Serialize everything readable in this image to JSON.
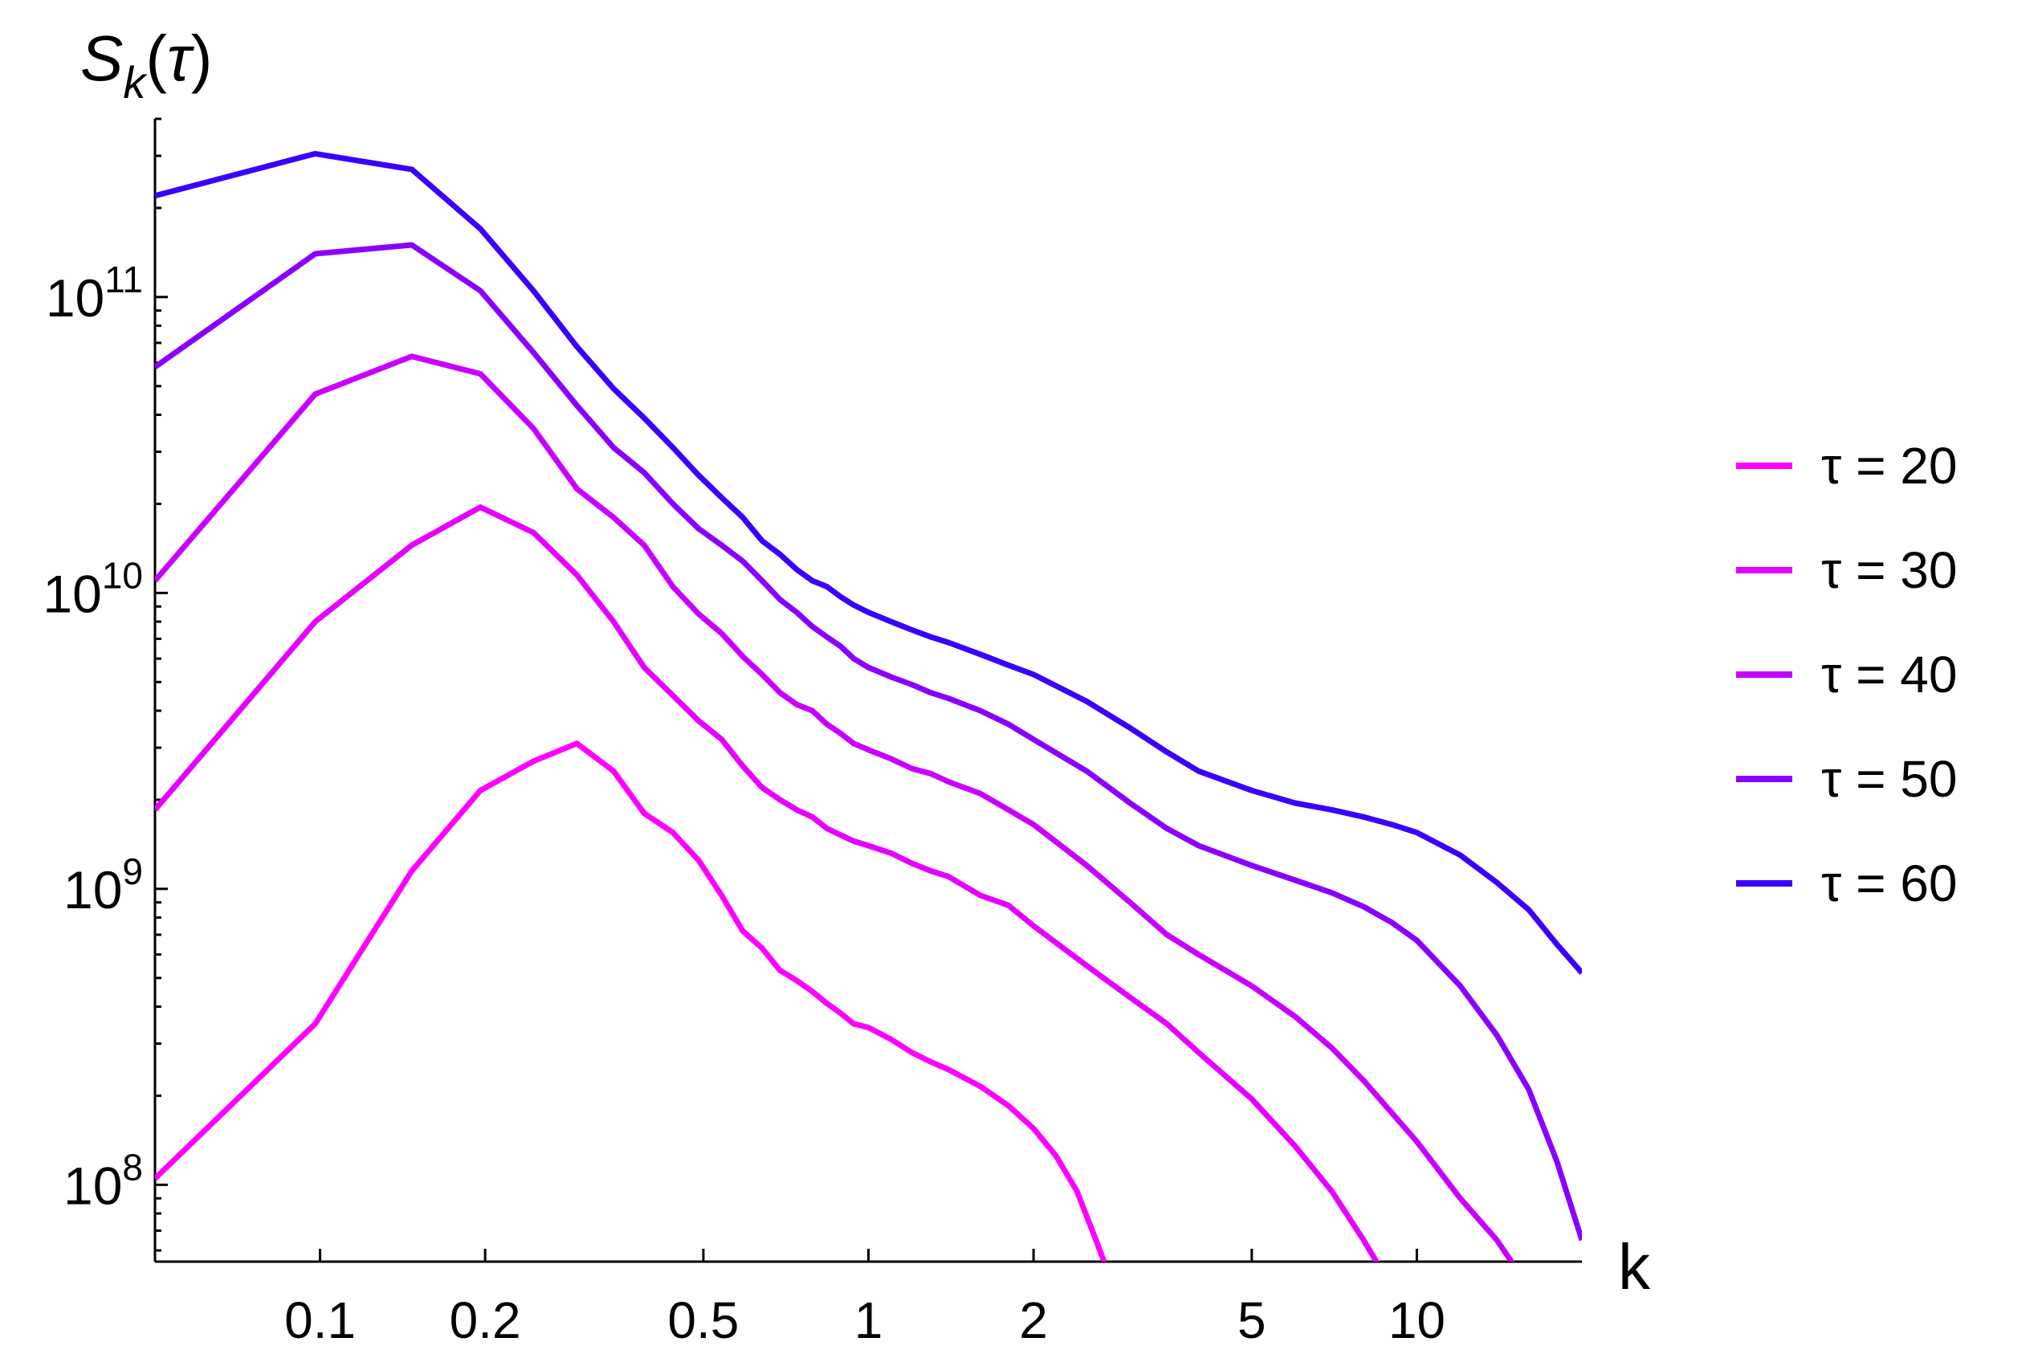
{
  "chart_data": {
    "type": "line",
    "title": "",
    "xlabel": "k",
    "ylabel": "S_k(τ)",
    "xscale": "log",
    "yscale": "log",
    "xlim": [
      0.05,
      20
    ],
    "ylim": [
      55000000,
      400000000000.0
    ],
    "x_ticks": [
      {
        "value": 0.1,
        "label": "0.1"
      },
      {
        "value": 0.2,
        "label": "0.2"
      },
      {
        "value": 0.5,
        "label": "0.5"
      },
      {
        "value": 1,
        "label": "1"
      },
      {
        "value": 2,
        "label": "2"
      },
      {
        "value": 5,
        "label": "5"
      },
      {
        "value": 10,
        "label": "10"
      }
    ],
    "y_ticks": [
      {
        "value": 100000000,
        "mantissa": "10",
        "exponent": "8"
      },
      {
        "value": 1000000000,
        "mantissa": "10",
        "exponent": "9"
      },
      {
        "value": 10000000000,
        "mantissa": "10",
        "exponent": "10"
      },
      {
        "value": 100000000000,
        "mantissa": "10",
        "exponent": "11"
      }
    ],
    "legend_position": "right",
    "series": [
      {
        "name": "τ = 20",
        "color": "#ff00ff",
        "points": [
          [
            0.05,
            105000000.0
          ],
          [
            0.098,
            350000000.0
          ],
          [
            0.147,
            1150000000.0
          ],
          [
            0.196,
            2150000000.0
          ],
          [
            0.245,
            2700000000.0
          ],
          [
            0.294,
            3100000000.0
          ],
          [
            0.343,
            2500000000.0
          ],
          [
            0.39,
            1800000000.0
          ],
          [
            0.44,
            1550000000.0
          ],
          [
            0.49,
            1250000000.0
          ],
          [
            0.54,
            950000000.0
          ],
          [
            0.59,
            720000000.0
          ],
          [
            0.64,
            630000000.0
          ],
          [
            0.69,
            530000000.0
          ],
          [
            0.74,
            490000000.0
          ],
          [
            0.79,
            450000000.0
          ],
          [
            0.84,
            410000000.0
          ],
          [
            0.89,
            380000000.0
          ],
          [
            0.94,
            350000000.0
          ],
          [
            1.0,
            340000000.0
          ],
          [
            1.1,
            310000000.0
          ],
          [
            1.2,
            280000000.0
          ],
          [
            1.3,
            260000000.0
          ],
          [
            1.4,
            245000000.0
          ],
          [
            1.6,
            215000000.0
          ],
          [
            1.8,
            185000000.0
          ],
          [
            2.0,
            155000000.0
          ],
          [
            2.2,
            125000000.0
          ],
          [
            2.4,
            95000000.0
          ],
          [
            2.6,
            65000000.0
          ],
          [
            2.8,
            45000000.0
          ]
        ]
      },
      {
        "name": "τ = 30",
        "color": "#e600ff",
        "points": [
          [
            0.05,
            1850000000.0
          ],
          [
            0.098,
            8000000000.0
          ],
          [
            0.147,
            14500000000.0
          ],
          [
            0.196,
            19500000000.0
          ],
          [
            0.245,
            16000000000.0
          ],
          [
            0.294,
            11500000000.0
          ],
          [
            0.343,
            8000000000.0
          ],
          [
            0.39,
            5600000000.0
          ],
          [
            0.44,
            4500000000.0
          ],
          [
            0.49,
            3700000000.0
          ],
          [
            0.54,
            3200000000.0
          ],
          [
            0.59,
            2600000000.0
          ],
          [
            0.64,
            2200000000.0
          ],
          [
            0.69,
            2000000000.0
          ],
          [
            0.74,
            1850000000.0
          ],
          [
            0.79,
            1750000000.0
          ],
          [
            0.84,
            1600000000.0
          ],
          [
            0.89,
            1520000000.0
          ],
          [
            0.94,
            1450000000.0
          ],
          [
            1.0,
            1400000000.0
          ],
          [
            1.1,
            1320000000.0
          ],
          [
            1.2,
            1220000000.0
          ],
          [
            1.3,
            1150000000.0
          ],
          [
            1.4,
            1100000000.0
          ],
          [
            1.6,
            950000000.0
          ],
          [
            1.8,
            880000000.0
          ],
          [
            2.0,
            750000000.0
          ],
          [
            2.5,
            550000000.0
          ],
          [
            3.0,
            430000000.0
          ],
          [
            3.5,
            350000000.0
          ],
          [
            4.0,
            280000000.0
          ],
          [
            5.0,
            195000000.0
          ],
          [
            6.0,
            135000000.0
          ],
          [
            7.0,
            95000000.0
          ],
          [
            8.0,
            65000000.0
          ],
          [
            9.0,
            45000000.0
          ]
        ]
      },
      {
        "name": "τ = 40",
        "color": "#c800ff",
        "points": [
          [
            0.05,
            11000000000.0
          ],
          [
            0.098,
            47000000000.0
          ],
          [
            0.147,
            63000000000.0
          ],
          [
            0.196,
            55000000000.0
          ],
          [
            0.245,
            36000000000.0
          ],
          [
            0.294,
            22500000000.0
          ],
          [
            0.343,
            18000000000.0
          ],
          [
            0.39,
            14500000000.0
          ],
          [
            0.44,
            10500000000.0
          ],
          [
            0.49,
            8500000000.0
          ],
          [
            0.54,
            7300000000.0
          ],
          [
            0.59,
            6100000000.0
          ],
          [
            0.64,
            5300000000.0
          ],
          [
            0.69,
            4600000000.0
          ],
          [
            0.74,
            4200000000.0
          ],
          [
            0.79,
            4000000000.0
          ],
          [
            0.84,
            3600000000.0
          ],
          [
            0.89,
            3350000000.0
          ],
          [
            0.94,
            3100000000.0
          ],
          [
            1.0,
            2950000000.0
          ],
          [
            1.1,
            2750000000.0
          ],
          [
            1.2,
            2550000000.0
          ],
          [
            1.3,
            2450000000.0
          ],
          [
            1.4,
            2300000000.0
          ],
          [
            1.6,
            2100000000.0
          ],
          [
            1.8,
            1850000000.0
          ],
          [
            2.0,
            1650000000.0
          ],
          [
            2.5,
            1200000000.0
          ],
          [
            3.0,
            900000000.0
          ],
          [
            3.5,
            700000000.0
          ],
          [
            4.0,
            600000000.0
          ],
          [
            5.0,
            470000000.0
          ],
          [
            6.0,
            370000000.0
          ],
          [
            7.0,
            290000000.0
          ],
          [
            8.0,
            225000000.0
          ],
          [
            10.0,
            140000000.0
          ],
          [
            12.0,
            90000000.0
          ],
          [
            14.0,
            65000000.0
          ],
          [
            16.0,
            45000000.0
          ]
        ]
      },
      {
        "name": "τ = 50",
        "color": "#8a00ff",
        "points": [
          [
            0.05,
            58000000000.0
          ],
          [
            0.098,
            140000000000.0
          ],
          [
            0.147,
            150000000000.0
          ],
          [
            0.196,
            105000000000.0
          ],
          [
            0.245,
            65000000000.0
          ],
          [
            0.294,
            43000000000.0
          ],
          [
            0.343,
            31000000000.0
          ],
          [
            0.39,
            25500000000.0
          ],
          [
            0.44,
            20000000000.0
          ],
          [
            0.49,
            16500000000.0
          ],
          [
            0.54,
            14500000000.0
          ],
          [
            0.59,
            12800000000.0
          ],
          [
            0.64,
            11000000000.0
          ],
          [
            0.69,
            9500000000.0
          ],
          [
            0.74,
            8600000000.0
          ],
          [
            0.79,
            7700000000.0
          ],
          [
            0.84,
            7100000000.0
          ],
          [
            0.89,
            6600000000.0
          ],
          [
            0.94,
            6000000000.0
          ],
          [
            1.0,
            5600000000.0
          ],
          [
            1.1,
            5200000000.0
          ],
          [
            1.2,
            4900000000.0
          ],
          [
            1.3,
            4600000000.0
          ],
          [
            1.4,
            4400000000.0
          ],
          [
            1.6,
            4000000000.0
          ],
          [
            1.8,
            3600000000.0
          ],
          [
            2.0,
            3200000000.0
          ],
          [
            2.5,
            2500000000.0
          ],
          [
            3.0,
            1950000000.0
          ],
          [
            3.5,
            1600000000.0
          ],
          [
            4.0,
            1400000000.0
          ],
          [
            5.0,
            1200000000.0
          ],
          [
            6.0,
            1070000000.0
          ],
          [
            7.0,
            970000000.0
          ],
          [
            8.0,
            870000000.0
          ],
          [
            9.0,
            770000000.0
          ],
          [
            10.0,
            670000000.0
          ],
          [
            12.0,
            470000000.0
          ],
          [
            14.0,
            320000000.0
          ],
          [
            16.0,
            210000000.0
          ],
          [
            18.0,
            120000000.0
          ],
          [
            20.0,
            65000000.0
          ]
        ]
      },
      {
        "name": "τ = 60",
        "color": "#3a00ff",
        "points": [
          [
            0.05,
            220000000000.0
          ],
          [
            0.098,
            305000000000.0
          ],
          [
            0.147,
            270000000000.0
          ],
          [
            0.196,
            170000000000.0
          ],
          [
            0.245,
            105000000000.0
          ],
          [
            0.294,
            68000000000.0
          ],
          [
            0.343,
            49000000000.0
          ],
          [
            0.39,
            39000000000.0
          ],
          [
            0.44,
            31000000000.0
          ],
          [
            0.49,
            25000000000.0
          ],
          [
            0.54,
            21000000000.0
          ],
          [
            0.59,
            18000000000.0
          ],
          [
            0.64,
            15000000000.0
          ],
          [
            0.69,
            13500000000.0
          ],
          [
            0.74,
            12000000000.0
          ],
          [
            0.79,
            11000000000.0
          ],
          [
            0.84,
            10500000000.0
          ],
          [
            0.89,
            9700000000.0
          ],
          [
            0.94,
            9100000000.0
          ],
          [
            1.0,
            8600000000.0
          ],
          [
            1.1,
            8000000000.0
          ],
          [
            1.2,
            7500000000.0
          ],
          [
            1.3,
            7100000000.0
          ],
          [
            1.4,
            6800000000.0
          ],
          [
            1.6,
            6200000000.0
          ],
          [
            1.8,
            5700000000.0
          ],
          [
            2.0,
            5300000000.0
          ],
          [
            2.5,
            4300000000.0
          ],
          [
            3.0,
            3500000000.0
          ],
          [
            3.5,
            2900000000.0
          ],
          [
            4.0,
            2500000000.0
          ],
          [
            5.0,
            2150000000.0
          ],
          [
            6.0,
            1950000000.0
          ],
          [
            7.0,
            1850000000.0
          ],
          [
            8.0,
            1750000000.0
          ],
          [
            9.0,
            1650000000.0
          ],
          [
            10.0,
            1550000000.0
          ],
          [
            12.0,
            1300000000.0
          ],
          [
            14.0,
            1050000000.0
          ],
          [
            16.0,
            850000000.0
          ],
          [
            18.0,
            650000000.0
          ],
          [
            20.0,
            520000000.0
          ]
        ]
      }
    ]
  }
}
